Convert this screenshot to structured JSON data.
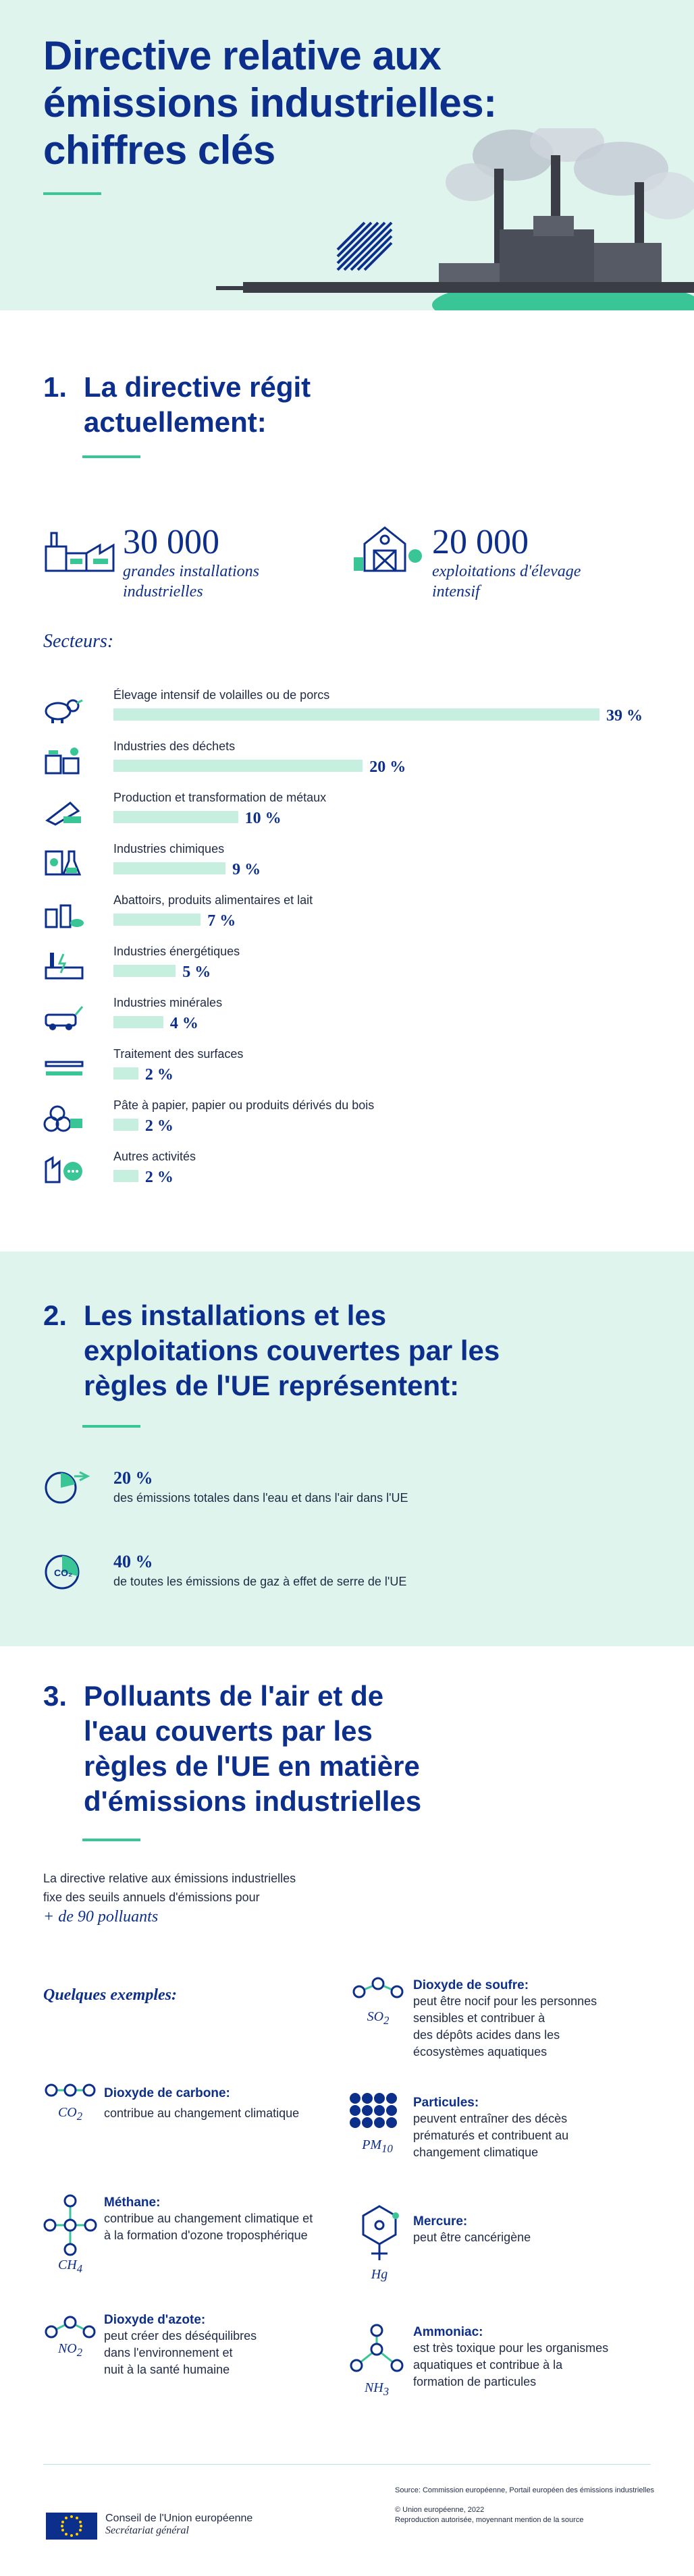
{
  "header": {
    "title_line1": "Directive relative aux",
    "title_line2": "émissions industrielles:",
    "title_line3": "chiffres clés"
  },
  "section1": {
    "number": "1.",
    "title_line1": "La directive régit",
    "title_line2": "actuellement:",
    "stat1_value": "30 000",
    "stat1_label_line1": "grandes installations",
    "stat1_label_line2": "industrielles",
    "stat2_value": "20 000",
    "stat2_label_line1": "exploitations d'élevage",
    "stat2_label_line2": "intensif",
    "sectors_heading": "Secteurs:",
    "sectors": [
      {
        "label": "Élevage intensif de volailles ou de porcs",
        "percent": "39 %",
        "value": 39,
        "icon": "poultry-pig-icon"
      },
      {
        "label": "Industries des déchets",
        "percent": "20 %",
        "value": 20,
        "icon": "waste-icon"
      },
      {
        "label": "Production et transformation de métaux",
        "percent": "10 %",
        "value": 10,
        "icon": "metal-icon"
      },
      {
        "label": "Industries chimiques",
        "percent": "9 %",
        "value": 9,
        "icon": "chemical-icon"
      },
      {
        "label": "Abattoirs, produits alimentaires et lait",
        "percent": "7 %",
        "value": 7,
        "icon": "food-icon"
      },
      {
        "label": "Industries énergétiques",
        "percent": "5 %",
        "value": 5,
        "icon": "energy-icon"
      },
      {
        "label": "Industries minérales",
        "percent": "4 %",
        "value": 4,
        "icon": "mineral-icon"
      },
      {
        "label": "Traitement des surfaces",
        "percent": "2 %",
        "value": 2,
        "icon": "surface-icon"
      },
      {
        "label": "Pâte à papier, papier ou produits dérivés du bois",
        "percent": "2 %",
        "value": 2,
        "icon": "wood-icon"
      },
      {
        "label": "Autres activités",
        "percent": "2 %",
        "value": 2,
        "icon": "other-activities-icon"
      }
    ]
  },
  "section2": {
    "number": "2.",
    "title_line1": "Les installations et les",
    "title_line2": "exploitations couvertes par les",
    "title_line3": "règles de l'UE représentent:",
    "items": [
      {
        "percent": "20 %",
        "text": "des émissions totales dans l'eau et dans l'air dans l'UE",
        "value": 20
      },
      {
        "percent": "40 %",
        "text": "de toutes les émissions de gaz à effet de serre de l'UE",
        "value": 40
      }
    ]
  },
  "section3": {
    "number": "3.",
    "title_line1": "Polluants de l'air et de",
    "title_line2": "l'eau couverts par les",
    "title_line3": "règles de l'UE en matière",
    "title_line4": "d'émissions industrielles",
    "intro_line1": "La directive relative aux émissions industrielles",
    "intro_line2": "fixe des seuils annuels d'émissions pour",
    "intro_highlight": "+ de 90 polluants",
    "examples_heading": "Quelques exemples:",
    "pollutants": {
      "so2": {
        "formula": "SO",
        "sub": "2",
        "name": "Dioxyde de soufre:",
        "desc_lines": [
          "peut être nocif pour les personnes",
          "sensibles et contribuer à",
          "des dépôts acides dans les",
          "écosystèmes aquatiques"
        ]
      },
      "co2": {
        "formula": "CO",
        "sub": "2",
        "name": "Dioxyde de carbone:",
        "desc_lines": [
          "contribue au changement climatique"
        ]
      },
      "pm10": {
        "formula": "PM",
        "sub": "10",
        "name": "Particules:",
        "desc_lines": [
          "peuvent entraîner des décès",
          "prématurés et contribuent au",
          "changement climatique"
        ]
      },
      "ch4": {
        "formula": "CH",
        "sub": "4",
        "name": "Méthane:",
        "desc_lines": [
          "contribue au changement climatique et",
          "à la formation d'ozone troposphérique"
        ]
      },
      "hg": {
        "formula": "Hg",
        "sub": "",
        "name": "Mercure:",
        "desc_lines": [
          "peut être cancérigène"
        ]
      },
      "no2": {
        "formula": "NO",
        "sub": "2",
        "name": "Dioxyde d'azote:",
        "desc_lines": [
          "peut créer des déséquilibres",
          "dans l'environnement et",
          "nuit à la santé humaine"
        ]
      },
      "nh3": {
        "formula": "NH",
        "sub": "3",
        "name": "Ammoniac:",
        "desc_lines": [
          "est très toxique pour les organismes",
          "aquatiques et contribue à la",
          "formation de particules"
        ]
      }
    }
  },
  "footer": {
    "org_line1": "Conseil de l'Union européenne",
    "org_line2": "Secrétariat général",
    "source": "Source: Commission européenne, Portail européen des émissions industrielles",
    "copyright": "© Union européenne, 2022",
    "reproduction": "Reproduction autorisée, moyennant mention de la source"
  },
  "colors": {
    "navy": "#0d2f8c",
    "mint": "#dff4ec",
    "green": "#3ac596",
    "bar": "#c6efe0"
  }
}
